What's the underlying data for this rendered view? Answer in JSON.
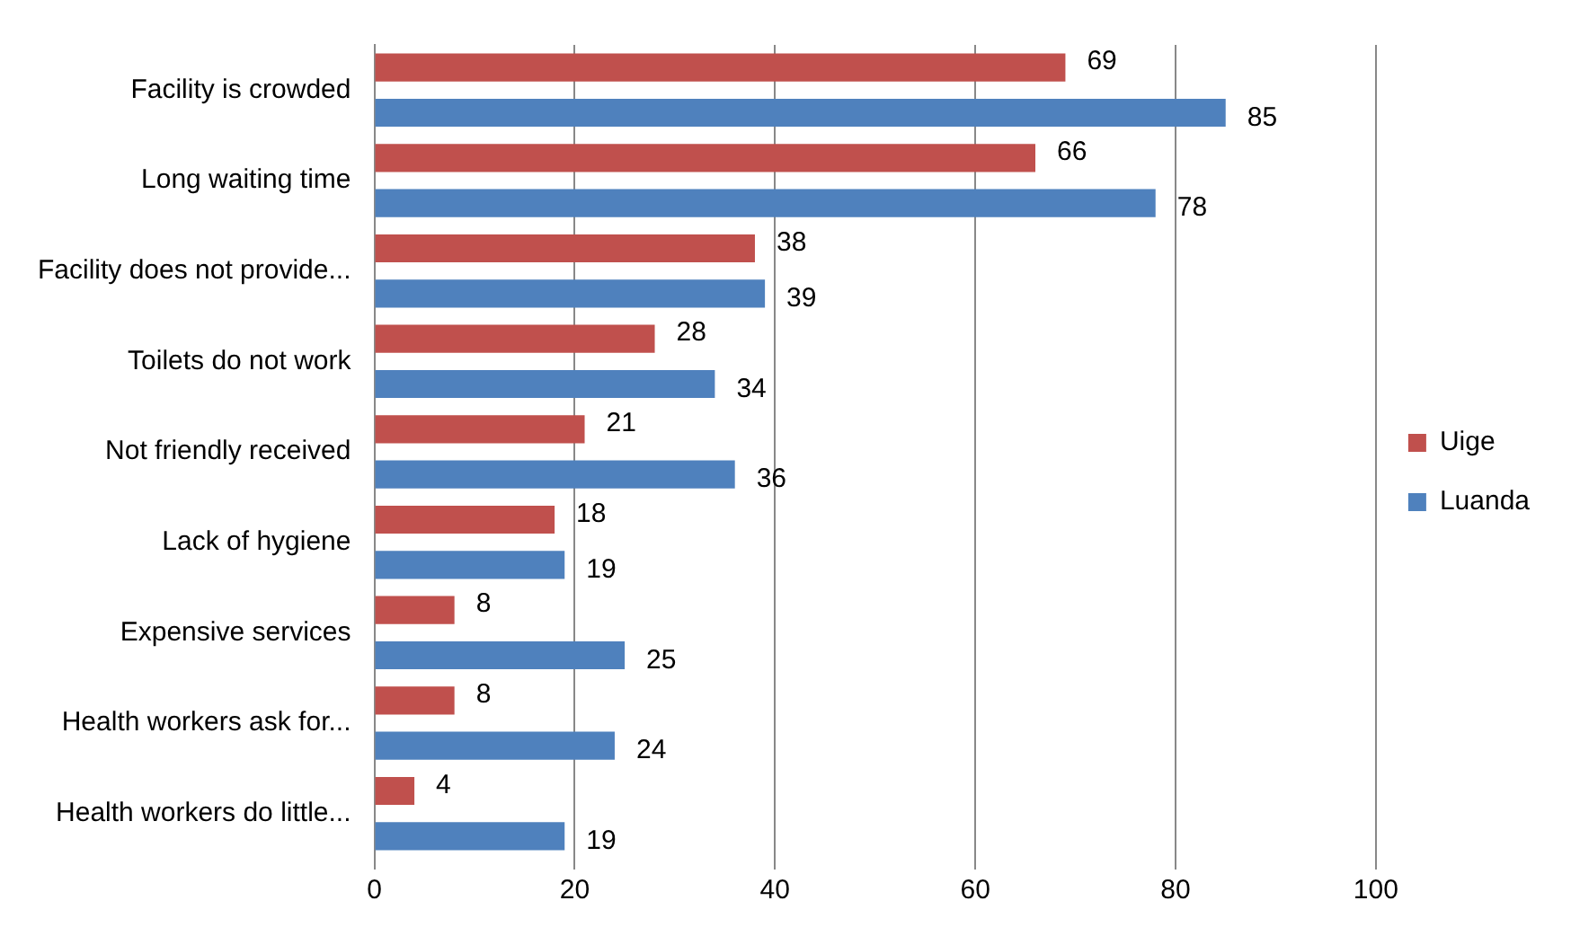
{
  "chart_data": {
    "type": "bar",
    "orientation": "horizontal",
    "categories": [
      "Facility is crowded",
      "Long waiting time",
      "Facility does not provide...",
      "Toilets do not work",
      "Not friendly received",
      "Lack of hygiene",
      "Expensive services",
      "Health workers ask for...",
      "Health workers do little..."
    ],
    "series": [
      {
        "name": "Uige",
        "color": "#c0504d",
        "values": [
          69,
          66,
          38,
          28,
          21,
          18,
          8,
          8,
          4
        ]
      },
      {
        "name": "Luanda",
        "color": "#4f81bd",
        "values": [
          85,
          78,
          39,
          34,
          36,
          19,
          25,
          24,
          19
        ]
      }
    ],
    "xlim": [
      0,
      100
    ],
    "xticks": [
      0,
      20,
      40,
      60,
      80,
      100
    ],
    "grid": "x",
    "legend": "right",
    "data_labels": true
  }
}
